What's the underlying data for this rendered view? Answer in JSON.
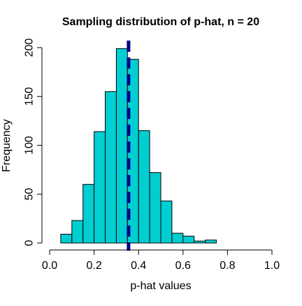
{
  "chart_data": {
    "type": "bar",
    "title": "Sampling distribution of p-hat, n = 20",
    "xlabel": "p-hat values",
    "ylabel": "Frequency",
    "xlim": [
      0.0,
      1.0
    ],
    "ylim": [
      0,
      200
    ],
    "x_ticks": [
      "0.0",
      "0.2",
      "0.4",
      "0.6",
      "0.8",
      "1.0"
    ],
    "y_ticks": [
      "0",
      "50",
      "100",
      "150",
      "200"
    ],
    "bin_width": 0.05,
    "bins": [
      {
        "start": 0.05,
        "end": 0.1,
        "value": 9
      },
      {
        "start": 0.1,
        "end": 0.15,
        "value": 23
      },
      {
        "start": 0.15,
        "end": 0.2,
        "value": 60
      },
      {
        "start": 0.2,
        "end": 0.25,
        "value": 114
      },
      {
        "start": 0.25,
        "end": 0.3,
        "value": 155
      },
      {
        "start": 0.3,
        "end": 0.35,
        "value": 199
      },
      {
        "start": 0.35,
        "end": 0.4,
        "value": 188
      },
      {
        "start": 0.4,
        "end": 0.45,
        "value": 115
      },
      {
        "start": 0.45,
        "end": 0.5,
        "value": 72
      },
      {
        "start": 0.5,
        "end": 0.55,
        "value": 43
      },
      {
        "start": 0.55,
        "end": 0.6,
        "value": 10
      },
      {
        "start": 0.6,
        "end": 0.65,
        "value": 7
      },
      {
        "start": 0.65,
        "end": 0.7,
        "value": 2
      },
      {
        "start": 0.7,
        "end": 0.75,
        "value": 3
      }
    ],
    "reference_line": {
      "x": 0.355,
      "style": "dashed",
      "color": "#00008b"
    },
    "bar_fill": "#00ced1",
    "bar_stroke": "#000000",
    "grid": false,
    "legend": "none"
  }
}
